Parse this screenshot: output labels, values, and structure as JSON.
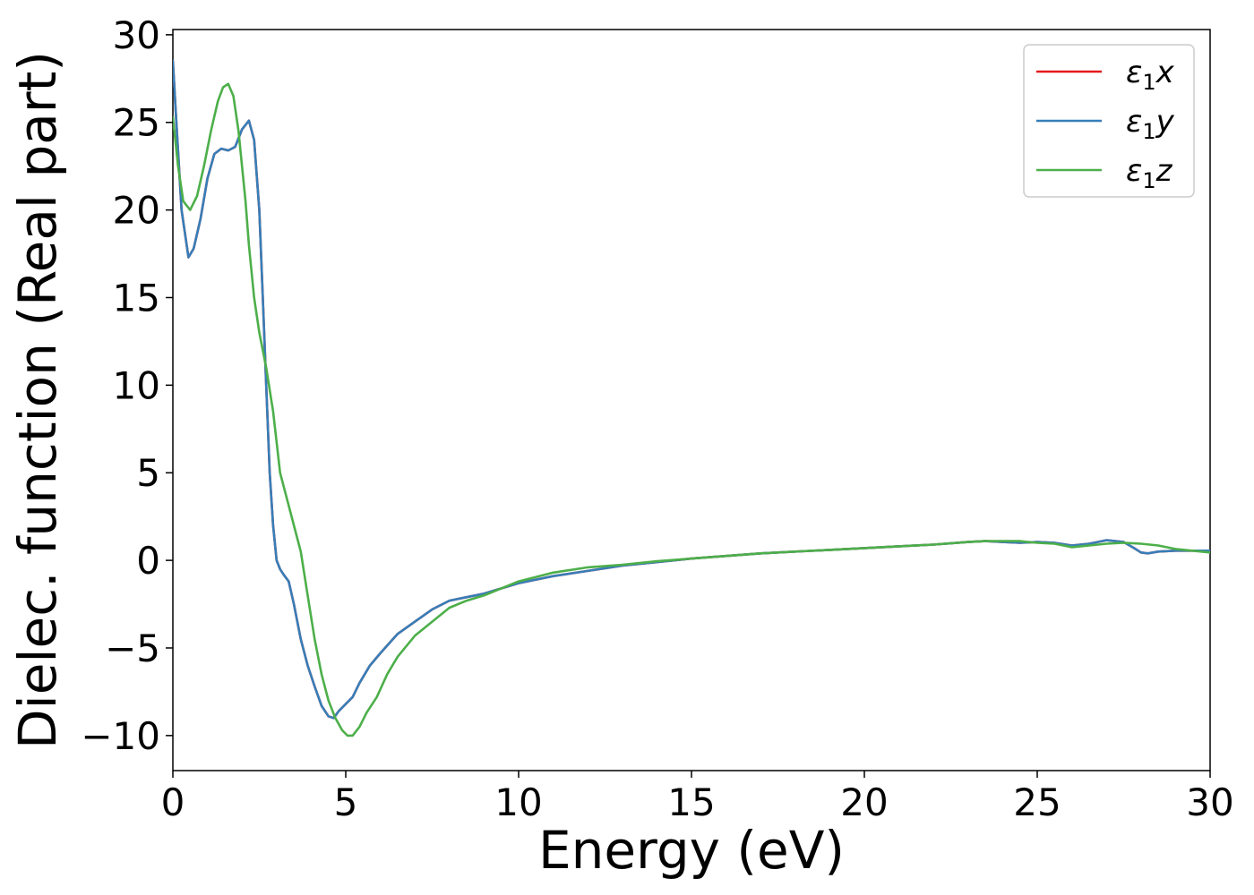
{
  "chart_data": {
    "type": "line",
    "xlabel": "Energy (eV)",
    "ylabel": "Dielec. function (Real part)",
    "xlim": [
      0,
      30
    ],
    "ylim": [
      -12,
      30.3
    ],
    "xticks": [
      0,
      5,
      10,
      15,
      20,
      25,
      30
    ],
    "xtick_labels": [
      "0",
      "5",
      "10",
      "15",
      "20",
      "25",
      "30"
    ],
    "yticks": [
      -10,
      -5,
      0,
      5,
      10,
      15,
      20,
      25,
      30
    ],
    "ytick_labels": [
      "−10",
      "−5",
      "0",
      "5",
      "10",
      "15",
      "20",
      "25",
      "30"
    ],
    "grid": false,
    "legend_position": "top-right",
    "series": [
      {
        "name": "ε₁x",
        "legend_main": "ε",
        "legend_sub": "1",
        "legend_suffix": "x",
        "color": "#e41a1c",
        "x": [
          0,
          0.1,
          0.25,
          0.45,
          0.6,
          0.8,
          1.0,
          1.2,
          1.4,
          1.6,
          1.8,
          2.0,
          2.2,
          2.35,
          2.5,
          2.6,
          2.7,
          2.8,
          2.9,
          3.0,
          3.1,
          3.2,
          3.35,
          3.5,
          3.7,
          3.9,
          4.1,
          4.3,
          4.5,
          4.65,
          4.8,
          5.0,
          5.2,
          5.4,
          5.7,
          6.0,
          6.5,
          7.0,
          7.5,
          8.0,
          8.5,
          9.0,
          10.0,
          11.0,
          12.0,
          13.0,
          14.0,
          15.0,
          16.0,
          17.0,
          18.0,
          19.0,
          20.0,
          21.0,
          22.0,
          23.0,
          23.5,
          24.0,
          24.5,
          25.0,
          25.5,
          26.0,
          26.5,
          27.0,
          27.5,
          27.8,
          28.0,
          28.2,
          28.5,
          29.0,
          30.0
        ],
        "values": [
          28.5,
          25.0,
          20.0,
          17.3,
          17.8,
          19.5,
          21.8,
          23.2,
          23.5,
          23.4,
          23.6,
          24.6,
          25.1,
          24.0,
          20.0,
          15.0,
          10.0,
          5.0,
          2.0,
          0.0,
          -0.5,
          -0.8,
          -1.2,
          -2.5,
          -4.5,
          -6.0,
          -7.2,
          -8.3,
          -8.9,
          -9.0,
          -8.6,
          -8.2,
          -7.8,
          -7.0,
          -6.0,
          -5.3,
          -4.2,
          -3.5,
          -2.8,
          -2.3,
          -2.1,
          -1.9,
          -1.3,
          -0.9,
          -0.6,
          -0.3,
          -0.1,
          0.1,
          0.25,
          0.4,
          0.5,
          0.6,
          0.7,
          0.8,
          0.9,
          1.05,
          1.1,
          1.05,
          1.0,
          1.05,
          1.0,
          0.85,
          0.95,
          1.15,
          1.05,
          0.7,
          0.45,
          0.4,
          0.5,
          0.55,
          0.55
        ]
      },
      {
        "name": "ε₁y",
        "legend_main": "ε",
        "legend_sub": "1",
        "legend_suffix": "y",
        "color": "#377eb8",
        "x": [
          0,
          0.1,
          0.25,
          0.45,
          0.6,
          0.8,
          1.0,
          1.2,
          1.4,
          1.6,
          1.8,
          2.0,
          2.2,
          2.35,
          2.5,
          2.6,
          2.7,
          2.8,
          2.9,
          3.0,
          3.1,
          3.2,
          3.35,
          3.5,
          3.7,
          3.9,
          4.1,
          4.3,
          4.5,
          4.65,
          4.8,
          5.0,
          5.2,
          5.4,
          5.7,
          6.0,
          6.5,
          7.0,
          7.5,
          8.0,
          8.5,
          9.0,
          10.0,
          11.0,
          12.0,
          13.0,
          14.0,
          15.0,
          16.0,
          17.0,
          18.0,
          19.0,
          20.0,
          21.0,
          22.0,
          23.0,
          23.5,
          24.0,
          24.5,
          25.0,
          25.5,
          26.0,
          26.5,
          27.0,
          27.5,
          27.8,
          28.0,
          28.2,
          28.5,
          29.0,
          30.0
        ],
        "values": [
          28.5,
          25.0,
          20.0,
          17.3,
          17.8,
          19.5,
          21.8,
          23.2,
          23.5,
          23.4,
          23.6,
          24.6,
          25.1,
          24.0,
          20.0,
          15.0,
          10.0,
          5.0,
          2.0,
          0.0,
          -0.5,
          -0.8,
          -1.2,
          -2.5,
          -4.5,
          -6.0,
          -7.2,
          -8.3,
          -8.9,
          -9.0,
          -8.6,
          -8.2,
          -7.8,
          -7.0,
          -6.0,
          -5.3,
          -4.2,
          -3.5,
          -2.8,
          -2.3,
          -2.1,
          -1.9,
          -1.3,
          -0.9,
          -0.6,
          -0.3,
          -0.1,
          0.1,
          0.25,
          0.4,
          0.5,
          0.6,
          0.7,
          0.8,
          0.9,
          1.05,
          1.1,
          1.05,
          1.0,
          1.05,
          1.0,
          0.85,
          0.95,
          1.15,
          1.05,
          0.7,
          0.45,
          0.4,
          0.5,
          0.55,
          0.55
        ]
      },
      {
        "name": "ε₁z",
        "legend_main": "ε",
        "legend_sub": "1",
        "legend_suffix": "z",
        "color": "#4daf4a",
        "x": [
          0,
          0.15,
          0.3,
          0.5,
          0.7,
          0.9,
          1.1,
          1.3,
          1.45,
          1.6,
          1.75,
          1.9,
          2.0,
          2.1,
          2.2,
          2.35,
          2.5,
          2.7,
          2.9,
          3.1,
          3.3,
          3.5,
          3.7,
          3.9,
          4.1,
          4.3,
          4.5,
          4.7,
          4.9,
          5.05,
          5.2,
          5.4,
          5.6,
          5.9,
          6.2,
          6.5,
          7.0,
          7.5,
          8.0,
          8.5,
          9.0,
          10.0,
          11.0,
          12.0,
          13.0,
          14.0,
          15.0,
          16.0,
          17.0,
          18.0,
          19.0,
          20.0,
          21.0,
          22.0,
          23.0,
          23.5,
          24.0,
          24.5,
          25.0,
          25.5,
          26.0,
          26.5,
          27.0,
          27.5,
          28.0,
          28.5,
          29.0,
          30.0
        ],
        "values": [
          25.3,
          22.5,
          20.5,
          20.0,
          20.8,
          22.5,
          24.5,
          26.2,
          27.0,
          27.2,
          26.5,
          24.5,
          22.5,
          20.5,
          18.0,
          15.0,
          13.0,
          11.0,
          8.5,
          5.0,
          3.5,
          2.0,
          0.5,
          -2.0,
          -4.5,
          -6.5,
          -8.0,
          -9.0,
          -9.7,
          -10.0,
          -10.0,
          -9.5,
          -8.7,
          -7.8,
          -6.5,
          -5.5,
          -4.3,
          -3.5,
          -2.7,
          -2.3,
          -2.0,
          -1.2,
          -0.7,
          -0.4,
          -0.25,
          -0.05,
          0.1,
          0.25,
          0.4,
          0.5,
          0.6,
          0.7,
          0.8,
          0.9,
          1.05,
          1.1,
          1.1,
          1.1,
          1.0,
          0.95,
          0.75,
          0.85,
          0.95,
          1.0,
          0.95,
          0.85,
          0.65,
          0.45
        ]
      }
    ]
  }
}
